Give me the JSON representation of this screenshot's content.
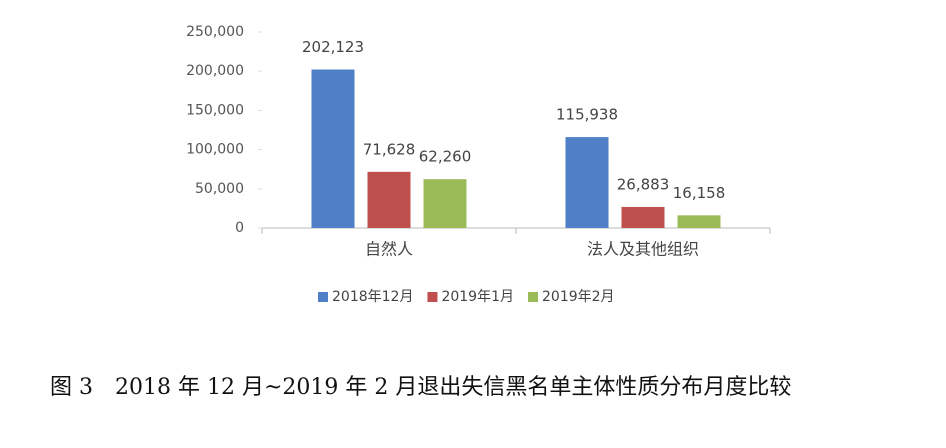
{
  "chart_data": {
    "type": "bar",
    "caption": "图 3　2018 年 12 月~2019 年 2 月退出失信黑名单主体性质分布月度比较",
    "categories": [
      "自然人",
      "法人及其他组织"
    ],
    "series": [
      {
        "name": "2018年12月",
        "color": "#4f7fc6",
        "values": [
          202123,
          115938
        ],
        "value_labels": [
          "202,123",
          "115,938"
        ]
      },
      {
        "name": "2019年1月",
        "color": "#c0504d",
        "values": [
          71628,
          26883
        ],
        "value_labels": [
          "71,628",
          "26,883"
        ]
      },
      {
        "name": "2019年2月",
        "color": "#9bbb59",
        "values": [
          62260,
          16158
        ],
        "value_labels": [
          "62,260",
          "16,158"
        ]
      }
    ],
    "ylim": [
      0,
      250000
    ],
    "yticks": [
      0,
      {
        "value": 50000,
        "label": "50,000"
      },
      {
        "value": 100000,
        "label": "100,000"
      },
      {
        "value": 150000,
        "label": "150,000"
      },
      {
        "value": 200000,
        "label": "200,000"
      },
      {
        "value": 250000,
        "label": "250,000"
      }
    ],
    "legend": "bottom"
  }
}
